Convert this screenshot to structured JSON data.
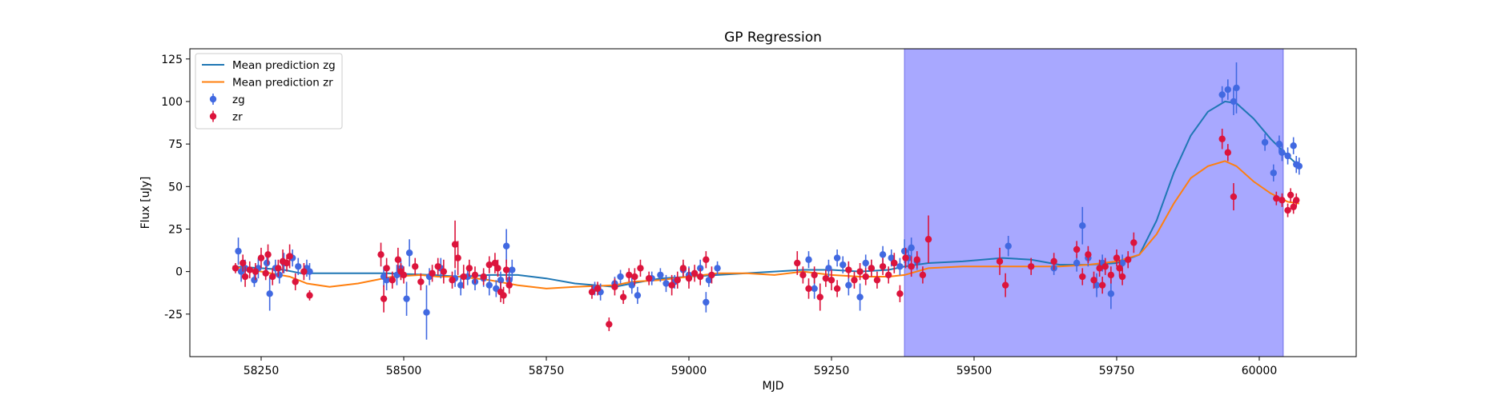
{
  "chart_data": {
    "type": "scatter",
    "title": "GP Regression",
    "xlabel": "MJD",
    "ylabel": "Flux [uJy]",
    "xlim": [
      58125,
      60170
    ],
    "ylim": [
      -50,
      131
    ],
    "xticks": [
      58250,
      58500,
      58750,
      59000,
      59250,
      59500,
      59750,
      60000
    ],
    "yticks": [
      -25,
      0,
      25,
      50,
      75,
      100,
      125
    ],
    "grid": false,
    "legend_position": "top-left",
    "shaded_region": {
      "x_start": 59378,
      "x_end": 60042,
      "color": "#a8a8ff"
    },
    "legend": [
      {
        "label": "Mean prediction zg",
        "kind": "line",
        "color": "#1f77b4"
      },
      {
        "label": "Mean prediction zr",
        "kind": "line",
        "color": "#ff7f0e"
      },
      {
        "label": "zg",
        "kind": "errorbar",
        "color": "#4169e1"
      },
      {
        "label": "zr",
        "kind": "errorbar",
        "color": "#dc143c"
      }
    ],
    "lines": [
      {
        "name": "Mean prediction zg",
        "color": "#1f77b4",
        "x": [
          58200,
          58250,
          58290,
          58320,
          58400,
          58470,
          58550,
          58600,
          58650,
          58700,
          58750,
          58800,
          58870,
          58900,
          58950,
          59000,
          59050,
          59100,
          59150,
          59200,
          59250,
          59300,
          59350,
          59378,
          59420,
          59480,
          59550,
          59600,
          59650,
          59700,
          59750,
          59790,
          59820,
          59850,
          59880,
          59910,
          59940,
          59960,
          59990,
          60020,
          60050,
          60070
        ],
        "y": [
          3,
          2,
          1,
          -1,
          -1,
          -1,
          -2,
          -3,
          -2,
          -2,
          -4,
          -7,
          -9,
          -7,
          -4,
          -3,
          -2,
          -1,
          0,
          1,
          1,
          0,
          1,
          3,
          5,
          6,
          8,
          7,
          4,
          4,
          5,
          10,
          30,
          58,
          80,
          94,
          100,
          99,
          90,
          78,
          68,
          62
        ]
      },
      {
        "name": "Mean prediction zr",
        "color": "#ff7f0e",
        "x": [
          58200,
          58250,
          58300,
          58330,
          58370,
          58420,
          58480,
          58530,
          58560,
          58600,
          58650,
          58700,
          58750,
          58800,
          58870,
          58900,
          58950,
          59000,
          59050,
          59100,
          59150,
          59200,
          59250,
          59300,
          59350,
          59378,
          59420,
          59480,
          59550,
          59600,
          59650,
          59700,
          59750,
          59790,
          59820,
          59850,
          59880,
          59910,
          59940,
          59960,
          59990,
          60020,
          60050,
          60070
        ],
        "y": [
          3,
          0,
          -3,
          -7,
          -9,
          -7,
          -3,
          -2,
          -3,
          -3,
          -5,
          -8,
          -10,
          -9,
          -8,
          -6,
          -5,
          -3,
          -1,
          -1,
          -2,
          0,
          -2,
          -3,
          -3,
          -2,
          2,
          3,
          3,
          3,
          3,
          4,
          6,
          10,
          22,
          40,
          55,
          62,
          65,
          62,
          53,
          46,
          41,
          40
        ]
      }
    ],
    "series": [
      {
        "name": "zg",
        "color": "#4169e1",
        "x": [
          58210,
          58215,
          58222,
          58238,
          58245,
          58260,
          58265,
          58275,
          58282,
          58290,
          58305,
          58315,
          58330,
          58335,
          58465,
          58470,
          58488,
          58495,
          58505,
          58510,
          58540,
          58545,
          58565,
          58590,
          58600,
          58612,
          58625,
          58640,
          58650,
          58662,
          58670,
          58680,
          58685,
          58690,
          58835,
          58845,
          58870,
          58880,
          58900,
          58910,
          58935,
          58950,
          58960,
          58975,
          58990,
          59000,
          59020,
          59030,
          59035,
          59050,
          59210,
          59220,
          59245,
          59260,
          59270,
          59280,
          59300,
          59310,
          59320,
          59340,
          59355,
          59360,
          59370,
          59378,
          59385,
          59390,
          59400,
          59560,
          59640,
          59680,
          59690,
          59700,
          59715,
          59725,
          59740,
          59760,
          59935,
          59945,
          59955,
          59960,
          60010,
          60025,
          60035,
          60040,
          60050,
          60060,
          60065,
          60070
        ],
        "y": [
          12,
          0,
          2,
          -5,
          2,
          5,
          -13,
          2,
          -2,
          5,
          8,
          3,
          2,
          0,
          -3,
          -5,
          -2,
          2,
          -16,
          11,
          -24,
          -3,
          2,
          -4,
          -8,
          -3,
          -6,
          -4,
          -8,
          -10,
          -5,
          15,
          -5,
          1,
          -10,
          -12,
          -7,
          -3,
          -8,
          -14,
          -4,
          -2,
          -7,
          -6,
          1,
          -2,
          2,
          -18,
          -5,
          2,
          7,
          -10,
          2,
          8,
          4,
          -8,
          -15,
          5,
          2,
          10,
          8,
          5,
          3,
          12,
          8,
          14,
          6,
          15,
          2,
          5,
          27,
          8,
          -8,
          5,
          -13,
          5,
          104,
          107,
          100,
          108,
          76,
          58,
          75,
          70,
          68,
          74,
          63,
          62
        ],
        "yerr": [
          8,
          6,
          5,
          4,
          6,
          5,
          10,
          5,
          5,
          6,
          5,
          5,
          5,
          5,
          6,
          6,
          6,
          5,
          10,
          8,
          16,
          5,
          6,
          5,
          6,
          5,
          5,
          5,
          6,
          5,
          5,
          10,
          5,
          6,
          4,
          5,
          4,
          4,
          5,
          5,
          4,
          4,
          5,
          4,
          4,
          5,
          5,
          6,
          4,
          4,
          5,
          6,
          5,
          5,
          5,
          6,
          8,
          5,
          5,
          5,
          5,
          5,
          5,
          7,
          6,
          6,
          5,
          6,
          4,
          5,
          11,
          5,
          7,
          5,
          9,
          5,
          5,
          6,
          8,
          15,
          5,
          5,
          5,
          5,
          5,
          5,
          5,
          5
        ]
      },
      {
        "name": "zr",
        "color": "#dc143c",
        "x": [
          58205,
          58218,
          58222,
          58230,
          58240,
          58250,
          58258,
          58262,
          58270,
          58280,
          58288,
          58295,
          58300,
          58310,
          58325,
          58335,
          58460,
          58465,
          58470,
          58480,
          58490,
          58495,
          58500,
          58520,
          58530,
          58550,
          58560,
          58570,
          58585,
          58590,
          58595,
          58605,
          58615,
          58625,
          58640,
          58650,
          58660,
          58665,
          58670,
          58675,
          58680,
          58685,
          58830,
          58840,
          58860,
          58870,
          58885,
          58895,
          58905,
          58915,
          58930,
          58970,
          58980,
          58990,
          59000,
          59010,
          59020,
          59030,
          59040,
          59190,
          59200,
          59210,
          59220,
          59230,
          59240,
          59250,
          59260,
          59280,
          59290,
          59300,
          59310,
          59320,
          59330,
          59340,
          59350,
          59360,
          59370,
          59380,
          59390,
          59400,
          59410,
          59420,
          59545,
          59555,
          59600,
          59640,
          59680,
          59690,
          59700,
          59710,
          59720,
          59725,
          59730,
          59740,
          59750,
          59755,
          59760,
          59770,
          59780,
          59935,
          59945,
          59955,
          60030,
          60040,
          60050,
          60055,
          60060,
          60065
        ],
        "y": [
          2,
          5,
          -3,
          1,
          0,
          8,
          -1,
          10,
          -3,
          2,
          6,
          5,
          9,
          -6,
          0,
          -14,
          10,
          -16,
          2,
          -5,
          7,
          0,
          -2,
          3,
          -6,
          -1,
          3,
          0,
          -5,
          16,
          8,
          -3,
          2,
          -2,
          -3,
          4,
          5,
          2,
          -12,
          -14,
          1,
          -8,
          -12,
          -10,
          -31,
          -9,
          -15,
          -2,
          -3,
          2,
          -4,
          -8,
          -5,
          2,
          -4,
          -1,
          -3,
          7,
          -2,
          5,
          -2,
          -10,
          -2,
          -15,
          -4,
          -5,
          -10,
          1,
          -5,
          0,
          -3,
          2,
          -5,
          3,
          -2,
          5,
          -13,
          8,
          3,
          7,
          -2,
          19,
          6,
          -8,
          3,
          6,
          13,
          -3,
          10,
          -5,
          2,
          -8,
          3,
          -2,
          8,
          2,
          -3,
          7,
          17,
          78,
          70,
          44,
          43,
          42,
          36,
          45,
          38,
          42
        ],
        "yerr": [
          3,
          5,
          6,
          5,
          5,
          6,
          4,
          6,
          5,
          5,
          7,
          5,
          7,
          5,
          5,
          3,
          7,
          8,
          6,
          5,
          7,
          5,
          5,
          5,
          5,
          5,
          5,
          7,
          5,
          14,
          10,
          7,
          5,
          5,
          5,
          5,
          6,
          5,
          6,
          5,
          6,
          5,
          4,
          4,
          4,
          5,
          4,
          4,
          5,
          5,
          4,
          6,
          5,
          5,
          6,
          5,
          5,
          5,
          5,
          7,
          5,
          6,
          5,
          8,
          5,
          6,
          5,
          5,
          5,
          5,
          5,
          5,
          5,
          5,
          5,
          6,
          5,
          6,
          6,
          5,
          5,
          14,
          8,
          7,
          5,
          5,
          5,
          5,
          5,
          5,
          5,
          5,
          5,
          5,
          5,
          5,
          5,
          5,
          6,
          6,
          5,
          8,
          4,
          4,
          4,
          4,
          4,
          4
        ]
      }
    ]
  }
}
